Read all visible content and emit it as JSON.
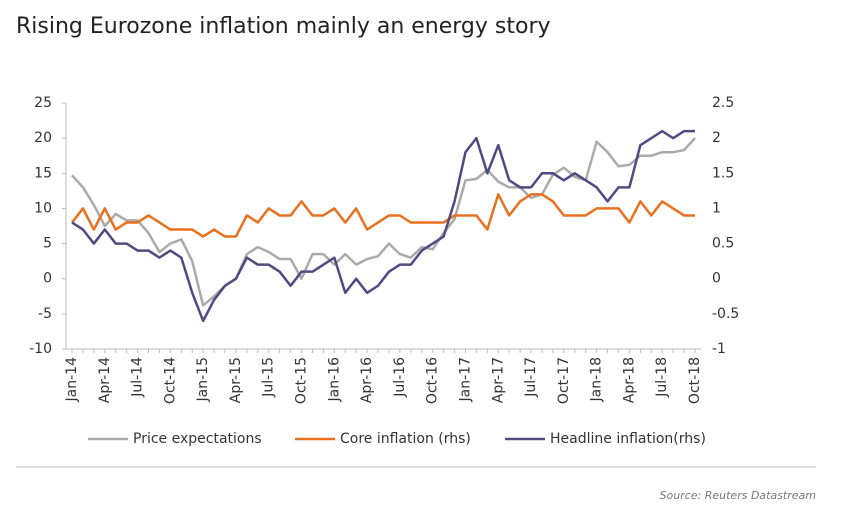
{
  "chart_data": {
    "type": "line",
    "title": "Rising Eurozone inflation mainly an energy story",
    "source": "Source: Reuters Datastream",
    "categories": [
      "Jan-14",
      null,
      null,
      "Apr-14",
      null,
      null,
      "Jul-14",
      null,
      null,
      "Oct-14",
      null,
      null,
      "Jan-15",
      null,
      null,
      "Apr-15",
      null,
      null,
      "Jul-15",
      null,
      null,
      "Oct-15",
      null,
      null,
      "Jan-16",
      null,
      null,
      "Apr-16",
      null,
      null,
      "Jul-16",
      null,
      null,
      "Oct-16",
      null,
      null,
      "Jan-17",
      null,
      null,
      "Apr-17",
      null,
      null,
      "Jul-17",
      null,
      null,
      "Oct-17",
      null,
      null,
      "Jan-18",
      null,
      null,
      "Apr-18",
      null,
      null,
      "Jul-18",
      null,
      null,
      "Oct-18"
    ],
    "series": [
      {
        "name": "Price expectations",
        "color": "#aaaaaa",
        "axis": "y",
        "values": [
          14.7,
          13,
          10.5,
          7.5,
          9.2,
          8.3,
          8.3,
          6.5,
          3.8,
          5,
          5.6,
          2.5,
          -3.8,
          -2.5,
          -1,
          0,
          3.5,
          4.5,
          3.8,
          2.8,
          2.8,
          0,
          3.5,
          3.5,
          2,
          3.5,
          2,
          2.8,
          3.2,
          5,
          3.5,
          3,
          4.5,
          4.2,
          6.5,
          8.5,
          14,
          14.2,
          15.5,
          13.8,
          13,
          13,
          11.5,
          12,
          14.8,
          15.8,
          14.5,
          14,
          19.5,
          18,
          16,
          16.2,
          17.5,
          17.5,
          18,
          18,
          18.3,
          20
        ]
      },
      {
        "name": "Core inflation (rhs)",
        "color": "#e8701f",
        "axis": "y2",
        "values": [
          0.8,
          1.0,
          0.7,
          1.0,
          0.7,
          0.8,
          0.8,
          0.9,
          0.8,
          0.7,
          0.7,
          0.7,
          0.6,
          0.7,
          0.6,
          0.6,
          0.9,
          0.8,
          1.0,
          0.9,
          0.9,
          1.1,
          0.9,
          0.9,
          1.0,
          0.8,
          1.0,
          0.7,
          0.8,
          0.9,
          0.9,
          0.8,
          0.8,
          0.8,
          0.8,
          0.9,
          0.9,
          0.9,
          0.7,
          1.2,
          0.9,
          1.1,
          1.2,
          1.2,
          1.1,
          0.9,
          0.9,
          0.9,
          1.0,
          1.0,
          1.0,
          0.8,
          1.1,
          0.9,
          1.1,
          1.0,
          0.9,
          0.9
        ]
      },
      {
        "name": "Headline inflation(rhs)",
        "color": "#4e4a82",
        "axis": "y2",
        "values": [
          0.8,
          0.7,
          0.5,
          0.7,
          0.5,
          0.5,
          0.4,
          0.4,
          0.3,
          0.4,
          0.3,
          -0.2,
          -0.6,
          -0.3,
          -0.1,
          0.0,
          0.3,
          0.2,
          0.2,
          0.1,
          -0.1,
          0.1,
          0.1,
          0.2,
          0.3,
          -0.2,
          0.0,
          -0.2,
          -0.1,
          0.1,
          0.2,
          0.2,
          0.4,
          0.5,
          0.6,
          1.1,
          1.8,
          2.0,
          1.5,
          1.9,
          1.4,
          1.3,
          1.3,
          1.5,
          1.5,
          1.4,
          1.5,
          1.4,
          1.3,
          1.1,
          1.3,
          1.3,
          1.9,
          2.0,
          2.1,
          2.0,
          2.1,
          2.1
        ]
      }
    ],
    "ylim": [
      -10,
      25
    ],
    "yticks": [
      -10,
      -5,
      0,
      5,
      10,
      15,
      20,
      25
    ],
    "y2lim": [
      -1,
      2.5
    ],
    "y2ticks": [
      -1,
      -0.5,
      0,
      0.5,
      1,
      1.5,
      2,
      2.5
    ],
    "grid": false,
    "legend": "bottom"
  }
}
